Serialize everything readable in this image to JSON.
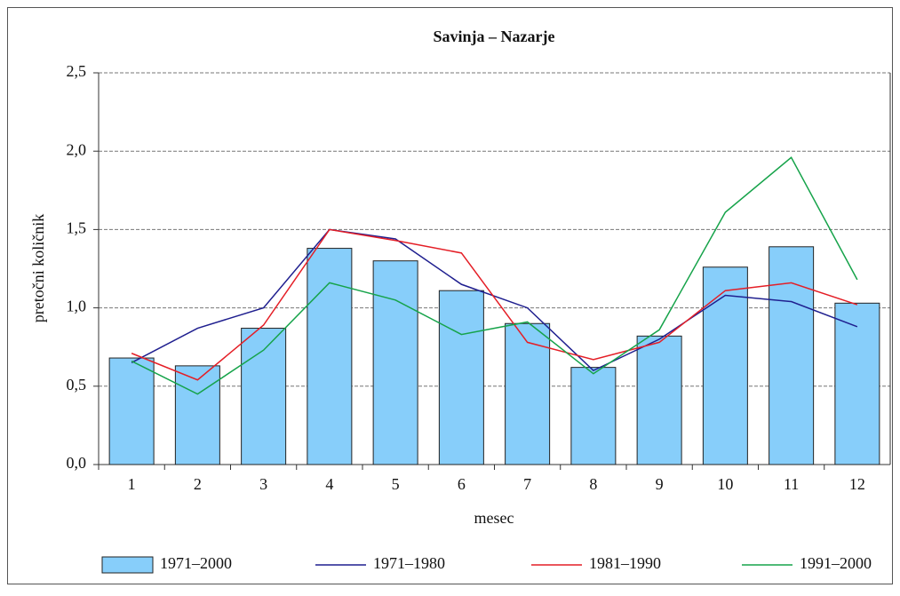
{
  "chart_data": {
    "type": "combo",
    "title": "Savinja – Nazarje",
    "x_label": "mesec",
    "y_label": "pretočni količnik",
    "categories": [
      "1",
      "2",
      "3",
      "4",
      "5",
      "6",
      "7",
      "8",
      "9",
      "10",
      "11",
      "12"
    ],
    "series": [
      {
        "name": "1971–2000",
        "type": "bar",
        "color": "#87cefa",
        "values": [
          0.68,
          0.63,
          0.87,
          1.38,
          1.3,
          1.11,
          0.9,
          0.62,
          0.82,
          1.26,
          1.39,
          1.03
        ]
      },
      {
        "name": "1971–1980",
        "type": "line",
        "color": "#1f1f8f",
        "values": [
          0.65,
          0.87,
          1.0,
          1.5,
          1.44,
          1.15,
          1.0,
          0.6,
          0.8,
          1.08,
          1.04,
          0.88
        ]
      },
      {
        "name": "1981–1990",
        "type": "line",
        "color": "#e41e26",
        "values": [
          0.71,
          0.54,
          0.89,
          1.5,
          1.43,
          1.35,
          0.78,
          0.67,
          0.78,
          1.11,
          1.16,
          1.02
        ]
      },
      {
        "name": "1991–2000",
        "type": "line",
        "color": "#16a34a",
        "values": [
          0.66,
          0.45,
          0.73,
          1.16,
          1.05,
          0.83,
          0.91,
          0.58,
          0.86,
          1.61,
          1.96,
          1.18
        ]
      }
    ],
    "ylim": [
      0,
      2.5
    ],
    "yticks": [
      {
        "value": 0,
        "label": "0,0"
      },
      {
        "value": 0.5,
        "label": "0,5"
      },
      {
        "value": 1,
        "label": "1,0"
      },
      {
        "value": 1.5,
        "label": "1,5"
      },
      {
        "value": 2,
        "label": "2,0"
      },
      {
        "value": 2.5,
        "label": "2,5"
      }
    ],
    "grid": true,
    "legend": "bottom"
  }
}
